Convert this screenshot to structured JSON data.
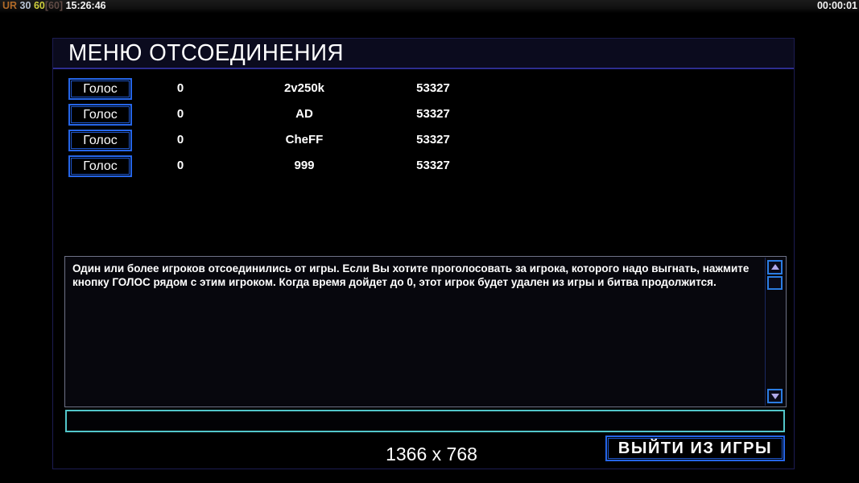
{
  "hud": {
    "status_left": {
      "label": "UR",
      "value_a": "30",
      "value_b": "60",
      "value_c": "[60]",
      "clock": "15:26:46"
    },
    "timer": "00:00:01"
  },
  "dialog": {
    "title": "МЕНЮ ОТСОЕДИНЕНИЯ",
    "players": [
      {
        "vote_label": "Голос",
        "votes": "0",
        "name": "2v250k",
        "score": "53327"
      },
      {
        "vote_label": "Голос",
        "votes": "0",
        "name": "AD",
        "score": "53327"
      },
      {
        "vote_label": "Голос",
        "votes": "0",
        "name": "CheFF",
        "score": "53327"
      },
      {
        "vote_label": "Голос",
        "votes": "0",
        "name": "999",
        "score": "53327"
      }
    ],
    "message": "Один или более игроков отсоединились от игры. Если Вы хотите проголосовать за игрока, которого надо выгнать, нажмите кнопку ГОЛОС рядом с этим игроком. Когда время дойдет до 0, этот игрок будет удален из игры и битва продолжится.",
    "chat_input": {
      "value": ""
    },
    "resolution": "1366 x 768",
    "exit_label": "ВЫЙТИ ИЗ ИГРЫ"
  },
  "icons": {
    "scroll_up": "arrow-up-icon",
    "scroll_down": "arrow-down-icon"
  },
  "colors": {
    "accent_blue": "#2565e8",
    "inner_blue": "#1e55c8",
    "navy_border": "#1c1c52",
    "title_underline": "#2d2d8f",
    "titlebar_bg": "#0b0b1e",
    "textarea_border": "#6e7287",
    "textarea_bg": "#07070d",
    "scroll_track_border": "#1b2960",
    "scroll_accent": "#2b7ce2",
    "arrow_lavender": "#b0a8e8",
    "input_cyan": "#52c6ca",
    "status_orange": "#b06a28",
    "status_pale": "#b8c4d4",
    "status_yellow": "#d0d03c",
    "status_dark": "#5f4a44",
    "text_white": "#f2f2f2"
  }
}
